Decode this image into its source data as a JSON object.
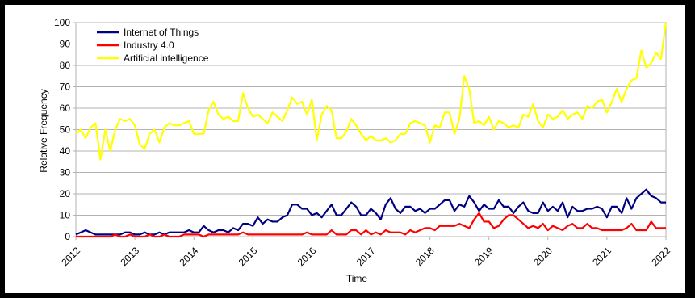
{
  "chart_data": {
    "type": "line",
    "title": "",
    "xlabel": "Time",
    "ylabel": "Relative Frequency",
    "ylim": [
      0,
      100
    ],
    "yticks": [
      0,
      10,
      20,
      30,
      40,
      50,
      60,
      70,
      80,
      90,
      100
    ],
    "xlim": [
      2012,
      2022
    ],
    "xticks": [
      "2012",
      "2013",
      "2014",
      "2015",
      "2016",
      "2017",
      "2018",
      "2019",
      "2020",
      "2021",
      "2022"
    ],
    "grid": true,
    "legend_position": "top-left",
    "x_step": "1 month",
    "x_start": "2012-01",
    "series": [
      {
        "name": "Internet of Things",
        "color": "#000080",
        "values": [
          1,
          2,
          3,
          2,
          1,
          1,
          1,
          1,
          1,
          1,
          2,
          2,
          1,
          1,
          2,
          1,
          1,
          2,
          1,
          2,
          2,
          2,
          2,
          3,
          2,
          2,
          5,
          3,
          2,
          3,
          3,
          2,
          4,
          3,
          6,
          6,
          5,
          9,
          6,
          8,
          7,
          7,
          9,
          10,
          15,
          15,
          13,
          13,
          10,
          11,
          9,
          12,
          15,
          10,
          10,
          13,
          16,
          14,
          10,
          10,
          13,
          11,
          8,
          15,
          18,
          13,
          11,
          14,
          14,
          12,
          13,
          11,
          13,
          13,
          15,
          17,
          17,
          12,
          15,
          14,
          19,
          16,
          12,
          15,
          13,
          13,
          17,
          14,
          14,
          11,
          14,
          16,
          12,
          11,
          11,
          16,
          12,
          14,
          12,
          16,
          9,
          14,
          12,
          12,
          13,
          13,
          14,
          13,
          9,
          14,
          14,
          11,
          18,
          13,
          18,
          20,
          22,
          19,
          18,
          16,
          16
        ]
      },
      {
        "name": "Industry 4.0",
        "color": "#ff0000",
        "values": [
          0,
          0,
          0,
          0,
          0,
          0,
          0,
          0,
          1,
          0,
          0,
          1,
          0,
          0,
          0,
          1,
          0,
          0,
          1,
          0,
          0,
          0,
          1,
          1,
          1,
          1,
          0,
          1,
          1,
          1,
          1,
          1,
          1,
          1,
          2,
          1,
          1,
          1,
          1,
          1,
          1,
          1,
          1,
          1,
          1,
          1,
          1,
          2,
          1,
          1,
          1,
          1,
          3,
          1,
          1,
          1,
          3,
          3,
          1,
          3,
          1,
          2,
          1,
          3,
          2,
          2,
          2,
          1,
          3,
          2,
          3,
          4,
          4,
          3,
          5,
          5,
          5,
          5,
          6,
          5,
          4,
          8,
          11,
          7,
          7,
          4,
          5,
          8,
          10,
          10,
          8,
          6,
          4,
          5,
          4,
          6,
          3,
          5,
          4,
          3,
          5,
          6,
          4,
          4,
          6,
          4,
          4,
          3,
          3,
          3,
          3,
          3,
          4,
          6,
          3,
          3,
          3,
          7,
          4,
          4,
          4
        ]
      },
      {
        "name": "Artificial intelligence",
        "color": "#ffff00",
        "values": [
          48,
          50,
          46,
          51,
          53,
          36,
          50,
          40,
          50,
          55,
          54,
          55,
          52,
          43,
          41,
          48,
          50,
          44,
          51,
          53,
          52,
          52,
          53,
          54,
          48,
          48,
          48,
          59,
          63,
          57,
          55,
          56,
          54,
          54,
          67,
          60,
          56,
          57,
          55,
          53,
          58,
          56,
          54,
          59,
          65,
          62,
          63,
          57,
          64,
          45,
          57,
          61,
          59,
          46,
          46,
          49,
          55,
          52,
          48,
          45,
          47,
          45,
          45,
          46,
          44,
          45,
          48,
          48,
          53,
          54,
          53,
          52,
          44,
          52,
          51,
          58,
          58,
          48,
          55,
          75,
          69,
          53,
          54,
          52,
          56,
          50,
          54,
          53,
          51,
          52,
          51,
          57,
          56,
          62,
          54,
          51,
          57,
          55,
          56,
          59,
          55,
          57,
          58,
          55,
          61,
          60,
          63,
          64,
          58,
          63,
          69,
          63,
          69,
          73,
          74,
          87,
          79,
          81,
          86,
          83,
          100
        ]
      }
    ]
  }
}
